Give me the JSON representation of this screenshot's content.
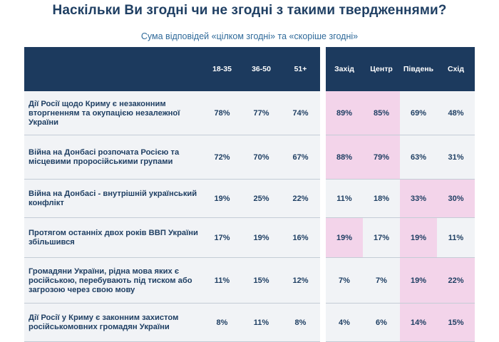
{
  "title": "Наскільки Ви згодні чи не згодні з такими твердженнями?",
  "subtitle": "Сума відповідей «цілком згодні» та «скоріше згодні»",
  "columns": [
    "18-35",
    "36-50",
    "51+",
    "Захід",
    "Центр",
    "Південь",
    "Схід"
  ],
  "highlight_color": "#f3d4ea",
  "header_color": "#1c3a5e",
  "rows": [
    {
      "statement": "Дії Росії щодо Криму є незаконним вторгненням та окупацією незалежної України",
      "values": [
        "78%",
        "77%",
        "74%",
        "89%",
        "85%",
        "69%",
        "48%"
      ],
      "highlight": [
        false,
        false,
        false,
        true,
        true,
        false,
        false
      ]
    },
    {
      "statement": "Війна на Донбасі розпочата Росією та місцевими проросійськими групами",
      "values": [
        "72%",
        "70%",
        "67%",
        "88%",
        "79%",
        "63%",
        "31%"
      ],
      "highlight": [
        false,
        false,
        false,
        true,
        true,
        false,
        false
      ]
    },
    {
      "statement": "Війна на Донбасі - внутрішній український конфлікт",
      "values": [
        "19%",
        "25%",
        "22%",
        "11%",
        "18%",
        "33%",
        "30%"
      ],
      "highlight": [
        false,
        false,
        false,
        false,
        false,
        true,
        true
      ]
    },
    {
      "statement": "Протягом останніх двох років ВВП України збільшився",
      "values": [
        "17%",
        "19%",
        "16%",
        "19%",
        "17%",
        "19%",
        "11%"
      ],
      "highlight": [
        false,
        false,
        false,
        true,
        false,
        true,
        false
      ]
    },
    {
      "statement": "Громадяни України, рідна мова яких є російською, перебувають під тиском або загрозою через свою мову",
      "values": [
        "11%",
        "15%",
        "12%",
        "7%",
        "7%",
        "19%",
        "22%"
      ],
      "highlight": [
        false,
        false,
        false,
        false,
        false,
        true,
        true
      ]
    },
    {
      "statement": "Дії Росії у Криму є законним захистом російськомовних громадян України",
      "values": [
        "8%",
        "11%",
        "8%",
        "4%",
        "6%",
        "14%",
        "15%"
      ],
      "highlight": [
        false,
        false,
        false,
        false,
        false,
        true,
        true
      ]
    }
  ]
}
